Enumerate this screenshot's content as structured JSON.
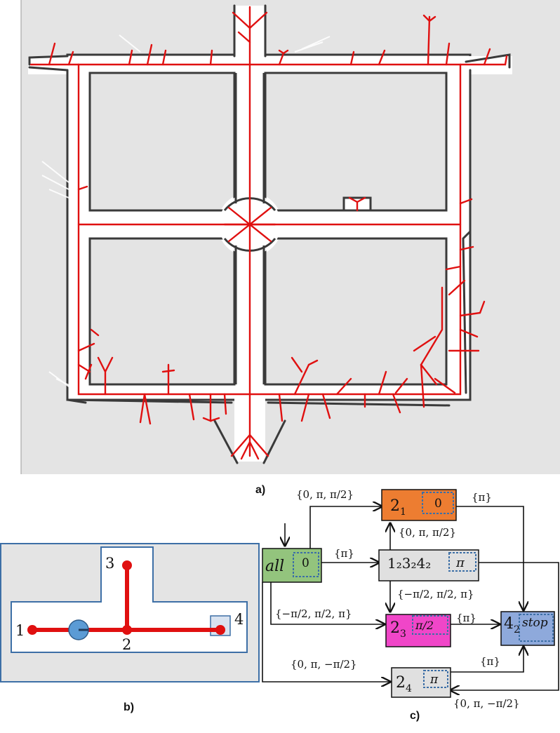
{
  "captions": {
    "a": "a)",
    "b": "b)",
    "c": "c)"
  },
  "colors": {
    "map_background": "#e4e4e4",
    "free_space": "#ffffff",
    "walls": "#3a3a3a",
    "skeleton": "#e01010",
    "robot": "#5b9bd5",
    "node_all": "#93c47d",
    "node_2_1": "#ed7d31",
    "node_1232_42": "#e0e0e0",
    "node_2_3": "#f046c8",
    "node_4_2": "#8ea9db",
    "node_2_4": "#e0e0e0",
    "dashed_inner": "#3d6fa6"
  },
  "panel_b": {
    "node_labels": [
      "1",
      "2",
      "3",
      "4"
    ]
  },
  "panel_c": {
    "nodes": {
      "all": {
        "main": "all",
        "inner": "0"
      },
      "n21": {
        "main": "2",
        "sub": "1",
        "inner": "0"
      },
      "n1232": {
        "main": "1₂3₂4₂",
        "inner": "π"
      },
      "n23": {
        "main": "2",
        "sub": "3",
        "inner": "π/2"
      },
      "n42": {
        "main": "4",
        "sub": "2",
        "inner": "stop"
      },
      "n24": {
        "main": "2",
        "sub": "4",
        "inner": "π"
      }
    },
    "edge_labels": {
      "all_to_21": "{0, π, π/2}",
      "all_to_1232": "{π}",
      "all_to_23": "{−π/2, π/2, π}",
      "all_to_24": "{0, π, −π/2}",
      "1232_to_21": "{0, π, π/2}",
      "1232_to_23": "{−π/2, π/2, π}",
      "21_to_42": "{π}",
      "23_to_42": "{π}",
      "24_to_42": "{π}",
      "1232_to_24": "{0, π, −π/2}"
    }
  }
}
